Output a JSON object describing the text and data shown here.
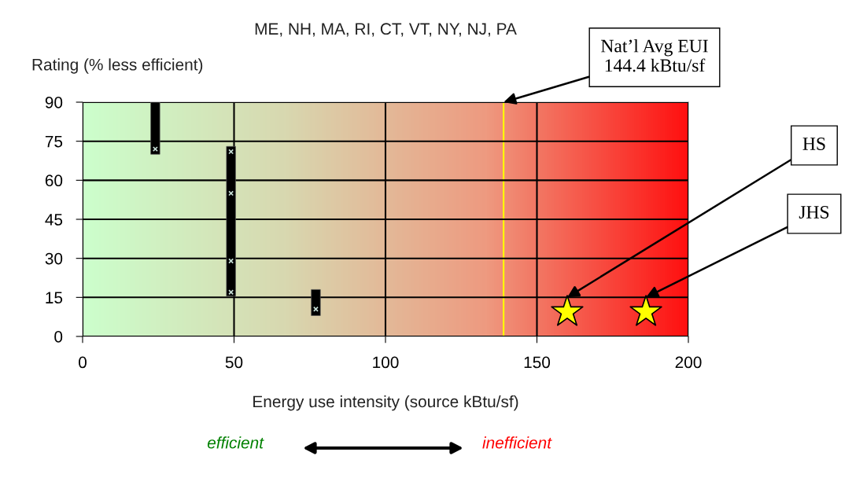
{
  "chart_data": {
    "type": "bar",
    "title": "ME, NH, MA, RI, CT, VT, NY, NJ, PA",
    "xlabel": "Energy use intensity (source kBtu/sf)",
    "ylabel": "Rating (% less efficient)",
    "series": [
      {
        "color": "#000000",
        "x": [
          24,
          49,
          77
        ],
        "base": [
          70,
          15.5,
          8
        ],
        "values": [
          20,
          57.5,
          10
        ]
      },
      {
        "type": "scatter",
        "color": "#c8e0d8",
        "marker": "cross",
        "x": [
          24,
          49,
          49,
          49,
          49,
          77
        ],
        "values": [
          72,
          71,
          55,
          29,
          17,
          10.5
        ]
      },
      {
        "type": "scatter",
        "color": "#ffff00",
        "marker": "star",
        "x": [
          160,
          186
        ],
        "values": [
          9.4,
          9.4
        ]
      }
    ],
    "xlim": [
      0,
      200
    ],
    "xticks": [
      0,
      50,
      100,
      150,
      200
    ],
    "ylim": [
      0,
      90
    ],
    "yticks": [
      0,
      15,
      30,
      45,
      60,
      75,
      90
    ],
    "grid": true,
    "ref_lines": [
      {
        "axis": "x",
        "value": 139,
        "color": "#ffff00"
      }
    ],
    "annotations": [
      {
        "text": "Nat’l Avg EUI\n144.4 kBtu/sf",
        "x": 139,
        "y": 90
      },
      {
        "text": "HS",
        "x": 160,
        "y": 15
      },
      {
        "text": "JHS",
        "x": 186,
        "y": 15
      },
      "efficient",
      "inefficient"
    ]
  }
}
